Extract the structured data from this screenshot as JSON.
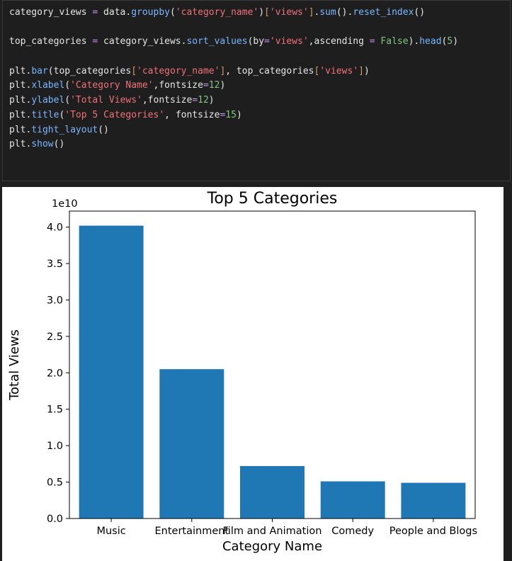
{
  "code_cell": {
    "lines": [
      [
        [
          "var",
          "category_views "
        ],
        [
          "op",
          "="
        ],
        [
          "var",
          " data."
        ],
        [
          "fn",
          "groupby"
        ],
        [
          "var",
          "("
        ],
        [
          "str",
          "'category_name'"
        ],
        [
          "var",
          ")"
        ],
        [
          "br",
          "["
        ],
        [
          "str",
          "'views'"
        ],
        [
          "br",
          "]"
        ],
        [
          "var",
          "."
        ],
        [
          "fn",
          "sum"
        ],
        [
          "var",
          "()."
        ],
        [
          "fn",
          "reset_index"
        ],
        [
          "var",
          "()"
        ]
      ],
      [],
      [
        [
          "var",
          "top_categories "
        ],
        [
          "op",
          "="
        ],
        [
          "var",
          " category_views."
        ],
        [
          "fn",
          "sort_values"
        ],
        [
          "var",
          "(by"
        ],
        [
          "op",
          "="
        ],
        [
          "str",
          "'views'"
        ],
        [
          "var",
          ",ascending "
        ],
        [
          "op",
          "="
        ],
        [
          "var",
          " "
        ],
        [
          "kw",
          "False"
        ],
        [
          "var",
          ")."
        ],
        [
          "fn",
          "head"
        ],
        [
          "var",
          "("
        ],
        [
          "num",
          "5"
        ],
        [
          "var",
          ")"
        ]
      ],
      [],
      [
        [
          "var",
          "plt."
        ],
        [
          "fn",
          "bar"
        ],
        [
          "var",
          "(top_categories"
        ],
        [
          "br",
          "["
        ],
        [
          "str",
          "'category_name'"
        ],
        [
          "br",
          "]"
        ],
        [
          "var",
          ", top_categories"
        ],
        [
          "br",
          "["
        ],
        [
          "str",
          "'views'"
        ],
        [
          "br",
          "]"
        ],
        [
          "var",
          ")"
        ]
      ],
      [
        [
          "var",
          "plt."
        ],
        [
          "fn",
          "xlabel"
        ],
        [
          "var",
          "("
        ],
        [
          "str",
          "'Category Name'"
        ],
        [
          "var",
          ",fontsize"
        ],
        [
          "op",
          "="
        ],
        [
          "num",
          "12"
        ],
        [
          "var",
          ")"
        ]
      ],
      [
        [
          "var",
          "plt."
        ],
        [
          "fn",
          "ylabel"
        ],
        [
          "var",
          "("
        ],
        [
          "str",
          "'Total Views'"
        ],
        [
          "var",
          ",fontsize"
        ],
        [
          "op",
          "="
        ],
        [
          "num",
          "12"
        ],
        [
          "var",
          ")"
        ]
      ],
      [
        [
          "var",
          "plt."
        ],
        [
          "fn",
          "title"
        ],
        [
          "var",
          "("
        ],
        [
          "str",
          "'Top 5 Categories'"
        ],
        [
          "var",
          ", fontsize"
        ],
        [
          "op",
          "="
        ],
        [
          "num",
          "15"
        ],
        [
          "var",
          ")"
        ]
      ],
      [
        [
          "var",
          "plt."
        ],
        [
          "fn",
          "tight_layout"
        ],
        [
          "var",
          "()"
        ]
      ],
      [
        [
          "var",
          "plt."
        ],
        [
          "fn",
          "show"
        ],
        [
          "var",
          "()"
        ]
      ]
    ]
  },
  "colors": {
    "bar": "#1f77b4"
  },
  "chart_data": {
    "type": "bar",
    "title": "Top 5 Categories",
    "xlabel": "Category Name",
    "ylabel": "Total Views",
    "offset_label": "1e10",
    "categories": [
      "Music",
      "Entertainment",
      "Film and Animation",
      "Comedy",
      "People and Blogs"
    ],
    "values": [
      4.02,
      2.05,
      0.72,
      0.51,
      0.49
    ],
    "value_multiplier": 10000000000.0,
    "ylim": [
      0,
      4.22
    ],
    "yticks": [
      0.0,
      0.5,
      1.0,
      1.5,
      2.0,
      2.5,
      3.0,
      3.5,
      4.0
    ],
    "ytick_labels": [
      "0.0",
      "0.5",
      "1.0",
      "1.5",
      "2.0",
      "2.5",
      "3.0",
      "3.5",
      "4.0"
    ],
    "grid": false,
    "legend": "none"
  }
}
